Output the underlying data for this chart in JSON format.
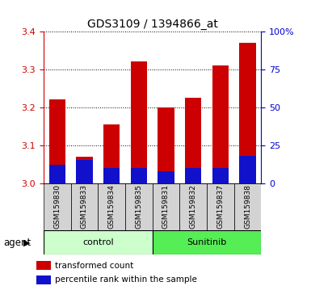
{
  "title": "GDS3109 / 1394866_at",
  "categories": [
    "GSM159830",
    "GSM159833",
    "GSM159834",
    "GSM159835",
    "GSM159831",
    "GSM159832",
    "GSM159837",
    "GSM159838"
  ],
  "red_values": [
    3.22,
    3.07,
    3.155,
    3.32,
    3.2,
    3.225,
    3.31,
    3.37
  ],
  "blue_percentile": [
    12,
    15,
    10,
    10,
    8,
    10,
    10,
    18
  ],
  "ylim_left": [
    3.0,
    3.4
  ],
  "ylim_right": [
    0,
    100
  ],
  "yticks_left": [
    3.0,
    3.1,
    3.2,
    3.3,
    3.4
  ],
  "yticks_right": [
    0,
    25,
    50,
    75,
    100
  ],
  "ytick_labels_right": [
    "0",
    "25",
    "50",
    "75",
    "100%"
  ],
  "bar_color_red": "#cc0000",
  "bar_color_blue": "#1111cc",
  "groups": [
    {
      "label": "control",
      "indices": [
        0,
        1,
        2,
        3
      ],
      "color": "#ccffcc"
    },
    {
      "label": "Sunitinib",
      "indices": [
        4,
        5,
        6,
        7
      ],
      "color": "#55ee55"
    }
  ],
  "group_row_label": "agent",
  "legend": [
    {
      "color": "#cc0000",
      "label": "transformed count"
    },
    {
      "color": "#1111cc",
      "label": "percentile rank within the sample"
    }
  ],
  "bar_width": 0.6,
  "background_color": "#ffffff",
  "plot_bg_color": "#ffffff",
  "tick_label_color_left": "#cc0000",
  "tick_label_color_right": "#0000cc",
  "xlabel_gray_bg": "#d3d3d3"
}
